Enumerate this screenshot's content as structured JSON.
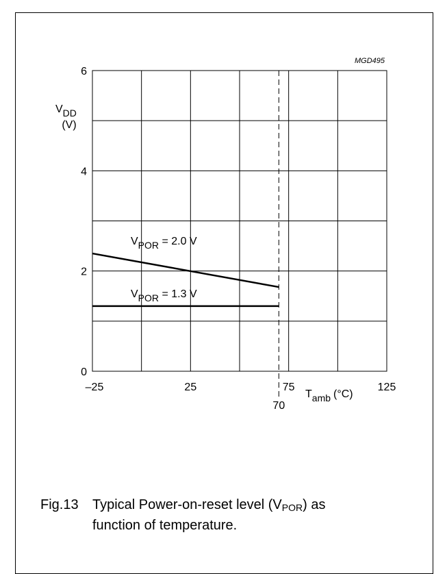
{
  "chart_data": {
    "type": "line",
    "code": "MGD495",
    "ylabel": {
      "main": "V",
      "sub": "DD",
      "unit": "(V)"
    },
    "xlabel": {
      "main": "T",
      "sub": "amb",
      "unit": "(°C)"
    },
    "xlim": [
      -25,
      125
    ],
    "ylim": [
      0,
      6
    ],
    "x_ticks": [
      {
        "value": -25,
        "label": "–25"
      },
      {
        "value": 25,
        "label": "25"
      },
      {
        "value": 75,
        "label": "75"
      },
      {
        "value": 125,
        "label": "125"
      }
    ],
    "y_ticks": [
      {
        "value": 0,
        "label": "0"
      },
      {
        "value": 2,
        "label": "2"
      },
      {
        "value": 4,
        "label": "4"
      },
      {
        "value": 6,
        "label": "6"
      }
    ],
    "x_grid": [
      -25,
      0,
      25,
      50,
      75,
      100,
      125
    ],
    "y_grid": [
      0,
      1,
      2,
      3,
      4,
      5,
      6
    ],
    "marker": {
      "x": 70,
      "label": "70",
      "style": "dashed"
    },
    "series": [
      {
        "name": "V_POR = 2.0 V",
        "label_main": "V",
        "label_sub": "POR",
        "label_rest": " = 2.0 V",
        "points": [
          [
            -25,
            2.35
          ],
          [
            70,
            1.68
          ]
        ]
      },
      {
        "name": "V_POR = 1.3 V",
        "label_main": "V",
        "label_sub": "POR",
        "label_rest": " = 1.3 V",
        "points": [
          [
            -25,
            1.3
          ],
          [
            70,
            1.3
          ]
        ]
      }
    ]
  },
  "caption": {
    "fig": "Fig.13",
    "text_before": "Typical Power-on-reset level (V",
    "text_sub": "POR",
    "text_after": ") as",
    "line2": "function of temperature."
  }
}
